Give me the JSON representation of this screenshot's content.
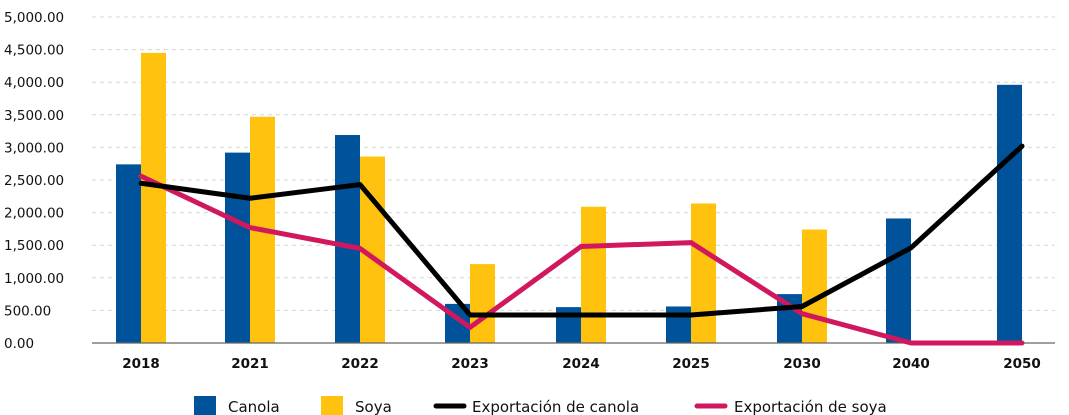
{
  "chart_data": {
    "type": "bar",
    "categories": [
      "2018",
      "2021",
      "2022",
      "2023",
      "2024",
      "2025",
      "2030",
      "2040",
      "2050"
    ],
    "ylim": [
      0,
      5000
    ],
    "yticks": [
      "0.00",
      "500.00",
      "1,000.00",
      "1,500.00",
      "2,000.00",
      "2,500.00",
      "3,000.00",
      "3,500.00",
      "4,000.00",
      "4,500.00",
      "5,000.00"
    ],
    "grid": true,
    "legend_position": "bottom",
    "series": [
      {
        "name": "Canola",
        "kind": "bar",
        "color": "#00539B",
        "values": [
          2740,
          2920,
          3190,
          600,
          550,
          560,
          750,
          1910,
          3960
        ]
      },
      {
        "name": "Soya",
        "kind": "bar",
        "color": "#FFC20E",
        "values": [
          4450,
          3470,
          2860,
          1210,
          2090,
          2140,
          1740,
          0,
          0
        ]
      },
      {
        "name": "Exportación de canola",
        "kind": "line",
        "color": "#000000",
        "values": [
          2450,
          2220,
          2430,
          430,
          430,
          430,
          560,
          1460,
          3020
        ]
      },
      {
        "name": "Exportación de soya",
        "kind": "line",
        "color": "#D1185E",
        "values": [
          2560,
          1770,
          1450,
          240,
          1480,
          1540,
          450,
          0,
          0
        ]
      }
    ]
  }
}
